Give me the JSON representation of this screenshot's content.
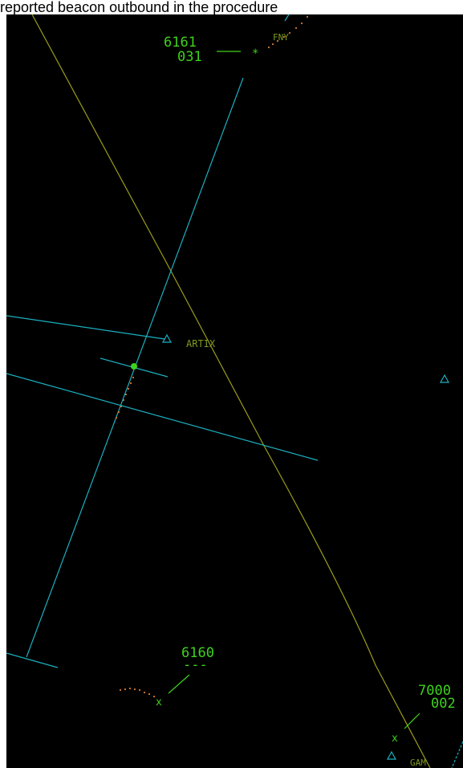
{
  "caption": {
    "text": "reported beacon outbound in the procedure"
  },
  "colors": {
    "background": "#000000",
    "datablock": "#3fd21c",
    "fix_label": "#7f9a1f",
    "airway": "#1bb0c0",
    "boundary": "#9c9c1a",
    "history": "#c46f2a"
  },
  "aircraft": [
    {
      "id": "ac1",
      "beacon": "6161",
      "altitude": "031",
      "symbol": "*"
    },
    {
      "id": "ac2",
      "beacon": "6160",
      "altitude": "---",
      "symbol": "x"
    },
    {
      "id": "ac3",
      "beacon": "7000",
      "altitude": "002",
      "symbol": "x"
    }
  ],
  "fixes": [
    {
      "id": "fny",
      "name": "FNY"
    },
    {
      "id": "artix",
      "name": "ARTIX"
    },
    {
      "id": "gam",
      "name": "GAM"
    }
  ]
}
